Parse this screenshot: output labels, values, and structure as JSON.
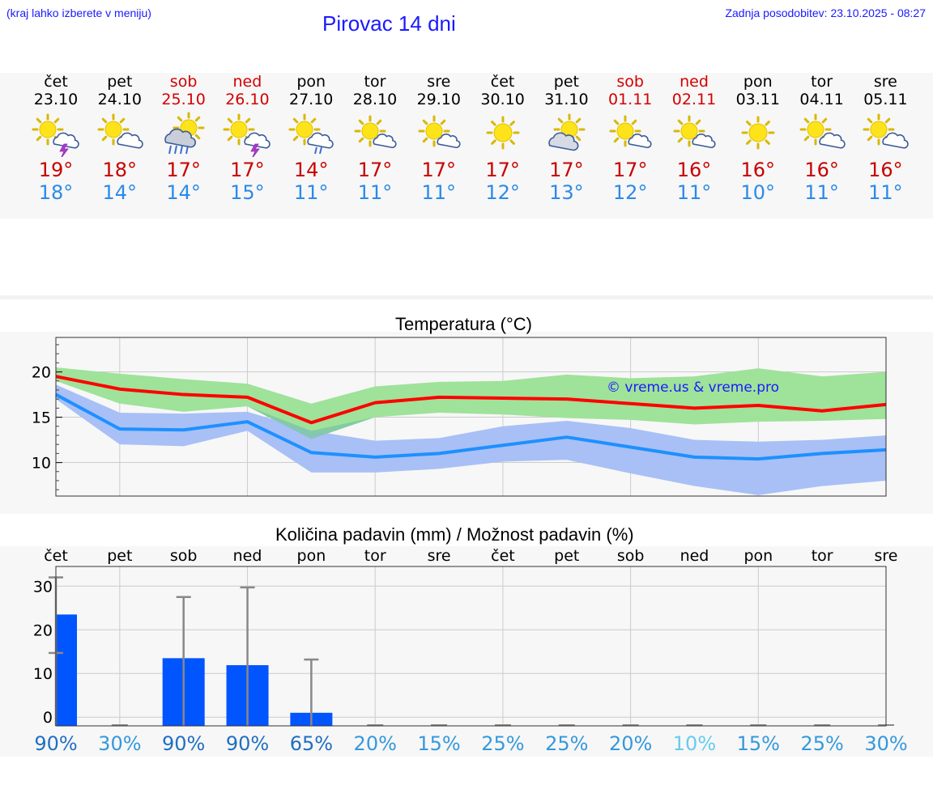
{
  "header": {
    "hint": "(kraj lahko izberete v meniju)",
    "title": "Pirovac 14 dni",
    "updated": "Zadnja posodobitev: 23.10.2025 - 08:27"
  },
  "days": [
    {
      "name": "čet",
      "date": "23.10",
      "weekend": false,
      "icon": "sun-cloud-thunder-icon",
      "tmax": "19°",
      "tmin": "18°"
    },
    {
      "name": "pet",
      "date": "24.10",
      "weekend": false,
      "icon": "sun-cloud-icon",
      "tmax": "18°",
      "tmin": "14°"
    },
    {
      "name": "sob",
      "date": "25.10",
      "weekend": true,
      "icon": "sun-cloud-rain-icon",
      "tmax": "17°",
      "tmin": "14°"
    },
    {
      "name": "ned",
      "date": "26.10",
      "weekend": true,
      "icon": "sun-cloud-thunder-icon",
      "tmax": "17°",
      "tmin": "15°"
    },
    {
      "name": "pon",
      "date": "27.10",
      "weekend": false,
      "icon": "sun-cloud-drizzle-icon",
      "tmax": "14°",
      "tmin": "11°"
    },
    {
      "name": "tor",
      "date": "28.10",
      "weekend": false,
      "icon": "sun-small-cloud-icon",
      "tmax": "17°",
      "tmin": "11°"
    },
    {
      "name": "sre",
      "date": "29.10",
      "weekend": false,
      "icon": "sun-small-cloud-icon",
      "tmax": "17°",
      "tmin": "11°"
    },
    {
      "name": "čet",
      "date": "30.10",
      "weekend": false,
      "icon": "sun-icon",
      "tmax": "17°",
      "tmin": "12°"
    },
    {
      "name": "pet",
      "date": "31.10",
      "weekend": false,
      "icon": "cloud-sun-icon",
      "tmax": "17°",
      "tmin": "13°"
    },
    {
      "name": "sob",
      "date": "01.11",
      "weekend": true,
      "icon": "sun-small-cloud-icon",
      "tmax": "17°",
      "tmin": "12°"
    },
    {
      "name": "ned",
      "date": "02.11",
      "weekend": true,
      "icon": "sun-small-cloud-icon",
      "tmax": "16°",
      "tmin": "11°"
    },
    {
      "name": "pon",
      "date": "03.11",
      "weekend": false,
      "icon": "sun-icon",
      "tmax": "16°",
      "tmin": "10°"
    },
    {
      "name": "tor",
      "date": "04.11",
      "weekend": false,
      "icon": "sun-cloud-icon",
      "tmax": "16°",
      "tmin": "11°"
    },
    {
      "name": "sre",
      "date": "05.11",
      "weekend": false,
      "icon": "sun-cloud-icon",
      "tmax": "16°",
      "tmin": "11°"
    }
  ],
  "colors": {
    "max_line": "#ff0000",
    "min_line": "#1e90ff",
    "max_band": "#9fe29a",
    "min_band": "#a8c0f5",
    "overlap_band": "#7fc7a6",
    "bar": "#0055ff",
    "accent": "#1a1aff"
  },
  "chart_data": [
    {
      "type": "line",
      "title": "Temperatura (°C)",
      "watermark": "© vreme.us & vreme.pro",
      "ylim": [
        6.3,
        23.8
      ],
      "yticks": [
        10,
        15,
        20
      ],
      "series": [
        {
          "name": "max",
          "values": [
            19.5,
            18.1,
            17.5,
            17.2,
            14.4,
            16.6,
            17.2,
            17.1,
            17.0,
            16.5,
            16.0,
            16.3,
            15.7,
            16.4
          ]
        },
        {
          "name": "min",
          "values": [
            17.5,
            13.7,
            13.6,
            14.5,
            11.1,
            10.6,
            11.0,
            11.9,
            12.8,
            11.7,
            10.6,
            10.4,
            11.0,
            11.4
          ]
        }
      ],
      "bands": [
        {
          "name": "max-range",
          "low": [
            19.0,
            16.5,
            15.6,
            16.2,
            12.6,
            15.0,
            15.5,
            15.3,
            14.9,
            14.7,
            14.2,
            14.5,
            14.6,
            14.8
          ],
          "high": [
            20.5,
            19.8,
            19.2,
            18.7,
            16.5,
            18.4,
            18.9,
            19.0,
            19.7,
            19.3,
            19.5,
            20.4,
            19.5,
            20.0
          ]
        },
        {
          "name": "min-range",
          "low": [
            17.0,
            12.0,
            11.8,
            13.5,
            8.9,
            8.9,
            9.3,
            10.1,
            10.3,
            8.8,
            7.4,
            6.4,
            7.4,
            8.0
          ],
          "high": [
            18.6,
            15.5,
            15.4,
            15.6,
            13.5,
            12.4,
            12.7,
            14.0,
            14.6,
            13.8,
            12.5,
            12.3,
            12.5,
            13.0
          ]
        }
      ]
    },
    {
      "type": "bar",
      "title": "Količina padavin (mm) / Možnost padavin (%)",
      "categories": [
        "čet",
        "pet",
        "sob",
        "ned",
        "pon",
        "tor",
        "sre",
        "čet",
        "pet",
        "sob",
        "ned",
        "pon",
        "tor",
        "sre"
      ],
      "values": [
        23.5,
        0,
        13.5,
        11.9,
        1.0,
        0,
        0,
        0,
        0,
        0,
        0,
        0,
        0,
        0
      ],
      "error_high": [
        32.0,
        0,
        27.5,
        29.7,
        13.2,
        0,
        0,
        0,
        0,
        0,
        0,
        0,
        0,
        0
      ],
      "error_low": [
        14.7,
        0,
        0,
        0,
        0,
        0,
        0,
        0,
        0,
        0,
        0,
        0,
        0,
        0
      ],
      "ylim": [
        -2,
        34.5
      ],
      "yticks": [
        0,
        10,
        20,
        30
      ],
      "probability": [
        "90%",
        "30%",
        "90%",
        "90%",
        "65%",
        "20%",
        "15%",
        "25%",
        "25%",
        "20%",
        "10%",
        "15%",
        "25%",
        "30%"
      ],
      "probability_values": [
        90,
        30,
        90,
        90,
        65,
        20,
        15,
        25,
        25,
        20,
        10,
        15,
        25,
        30
      ]
    }
  ]
}
